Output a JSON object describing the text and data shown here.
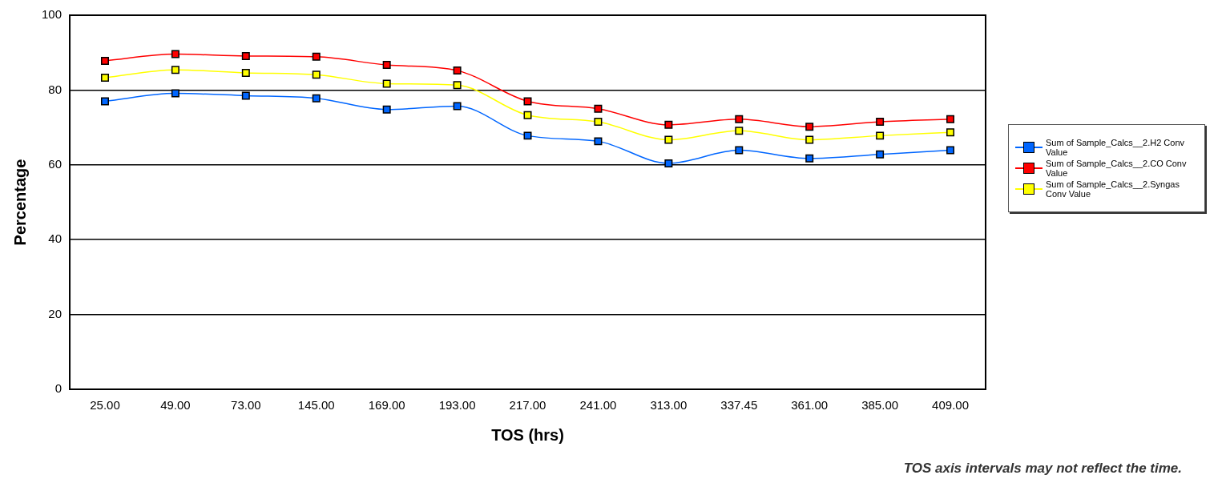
{
  "chart_data": {
    "type": "line",
    "xlabel": "TOS (hrs)",
    "ylabel": "Percentage",
    "categories": [
      "25.00",
      "49.00",
      "73.00",
      "145.00",
      "169.00",
      "193.00",
      "217.00",
      "241.00",
      "313.00",
      "337.45",
      "361.00",
      "385.00",
      "409.00"
    ],
    "series": [
      {
        "name": "Sum of Sample_Calcs__2.H2 Conv Value",
        "color": "#0066ff",
        "values": [
          77,
          79.1,
          78.5,
          77.8,
          74.8,
          75.7,
          67.8,
          66.3,
          60.4,
          63.9,
          61.7,
          62.8,
          63.9
        ]
      },
      {
        "name": "Sum of Sample_Calcs__2.CO Conv Value",
        "color": "#ff0000",
        "values": [
          87.8,
          89.6,
          89.1,
          88.9,
          86.7,
          85.2,
          77,
          75,
          70.7,
          72.2,
          70.2,
          71.5,
          72.2
        ]
      },
      {
        "name": "Sum of Sample_Calcs__2.Syngas Conv Value",
        "color": "#ffff00",
        "values": [
          83.3,
          85.4,
          84.6,
          84.1,
          81.7,
          81.3,
          73.3,
          71.5,
          66.7,
          69.1,
          66.7,
          67.8,
          68.7
        ]
      }
    ],
    "ylim": [
      0,
      100
    ],
    "yticks": [
      0,
      20,
      40,
      60,
      80,
      100
    ],
    "grid": "y",
    "legend": "right",
    "marker": "square",
    "line_style": "solid",
    "annotations": [
      "TOS axis intervals may not reflect the time."
    ]
  }
}
